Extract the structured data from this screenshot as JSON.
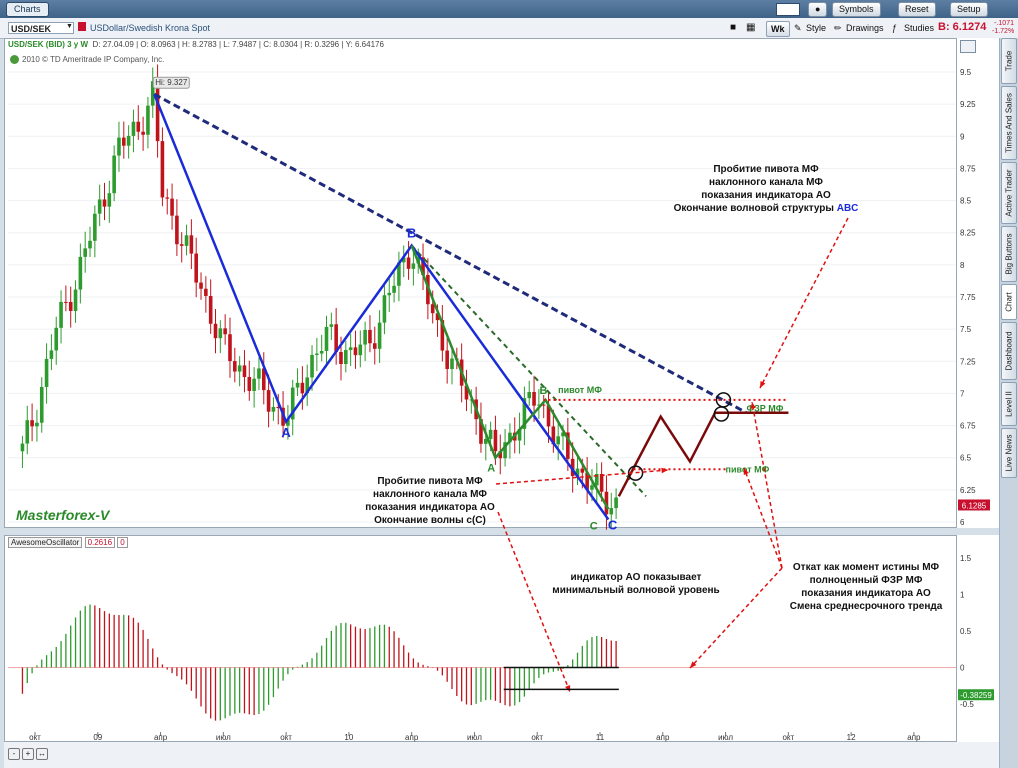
{
  "window": {
    "title": "Charts",
    "buttons": [
      "Symbols",
      "Reset",
      "Setup"
    ]
  },
  "toolbar": {
    "symbol": "USD/SEK",
    "description": "USDollar/Swedish Krona Spot",
    "wk": "Wk",
    "style": "Style",
    "drawings": "Drawings",
    "studies": "Studies",
    "bid": "B: 6.1274",
    "change1": "-.1071",
    "change2": "-1.72%"
  },
  "sidebar": {
    "tabs": [
      "Trade",
      "Times And Sales",
      "Active Trader",
      "Big Buttons",
      "Chart",
      "Dashboard",
      "Level II",
      "Live News"
    ]
  },
  "header": {
    "symbol": "USD/SEK (BID) 3 y W",
    "d": "D: 27.04.09",
    "o": "O: 8.0963",
    "h": "H: 8.2783",
    "l": "L: 7.9487",
    "c": "C: 8.0304",
    "r": "R: 0.3296",
    "y": "Y: 6.64176",
    "copyright": "2010 © TD Ameritrade IP Company, Inc."
  },
  "colors": {
    "up": "#2e9b2e",
    "down": "#c0141c",
    "wave": "#1a2bd8",
    "trend": "#1f2b7a",
    "green_wave": "#2c8a2c",
    "forecast": "#7a0a0a",
    "annotation": "#e01010"
  },
  "chart_data": [
    {
      "type": "candlestick",
      "title": "USD/SEK (BID) 3 y W",
      "ylim": [
        6.0,
        9.6
      ],
      "y_ticks": [
        "9.5",
        "9.25",
        "9",
        "8.75",
        "8.5",
        "8.25",
        "8",
        "7.75",
        "7.5",
        "7.25",
        "7",
        "6.75",
        "6.5",
        "6.25",
        "6"
      ],
      "x_ticks": [
        "окт",
        "09",
        "апр",
        "июл",
        "окт",
        "10",
        "апр",
        "июл",
        "окт",
        "11",
        "апр",
        "июл",
        "окт",
        "12",
        "апр"
      ],
      "last_price": "6.1285",
      "high_label": "Hi: 9.327",
      "watermark": "Masterforex-V",
      "wave_labels": [
        {
          "text": "A",
          "color": "blue",
          "x": "окт 09",
          "y": 6.77
        },
        {
          "text": "B",
          "color": "blue",
          "x": "апр 10",
          "y": 8.15
        },
        {
          "text": "C",
          "color": "blue",
          "x": "апр 11",
          "y": 6.02
        },
        {
          "text": "A",
          "color": "green",
          "x": "окт 10",
          "y": 6.4
        },
        {
          "text": "B",
          "color": "green",
          "x": "ноя 10",
          "y": 7.02
        },
        {
          "text": "C",
          "color": "green",
          "x": "апр 11",
          "y": 6.02
        }
      ],
      "level_labels": [
        "пивот МФ",
        "пивот МФ",
        "ФЗР МФ"
      ],
      "annotations": [
        {
          "lines": [
            "Пробитие пивота МФ",
            "наклонного канала МФ",
            "показания индикатора АО",
            "Окончание волновой структуры"
          ],
          "emphasis": "ABC"
        },
        {
          "lines": [
            "Пробитие пивота МФ",
            "наклонного канала МФ",
            "показания индикатора АО",
            "Окончание волны с(C)"
          ]
        },
        {
          "lines": [
            "Откат как момент истины МФ",
            "полноценный ФЗР МФ",
            "показания индикатора АО",
            "Смена среднесрочного тренда"
          ]
        }
      ]
    },
    {
      "type": "bar",
      "title": "AwesomeOscillator",
      "value": "0.2616",
      "param": "0",
      "ylim": [
        -0.8,
        1.6
      ],
      "y_ticks": [
        "1.5",
        "1",
        "0.5",
        "0",
        "-0.5"
      ],
      "last_value": "-0.38259",
      "annotation": [
        "индикатор АО показывает",
        "минимальный волновой уровень"
      ]
    }
  ]
}
